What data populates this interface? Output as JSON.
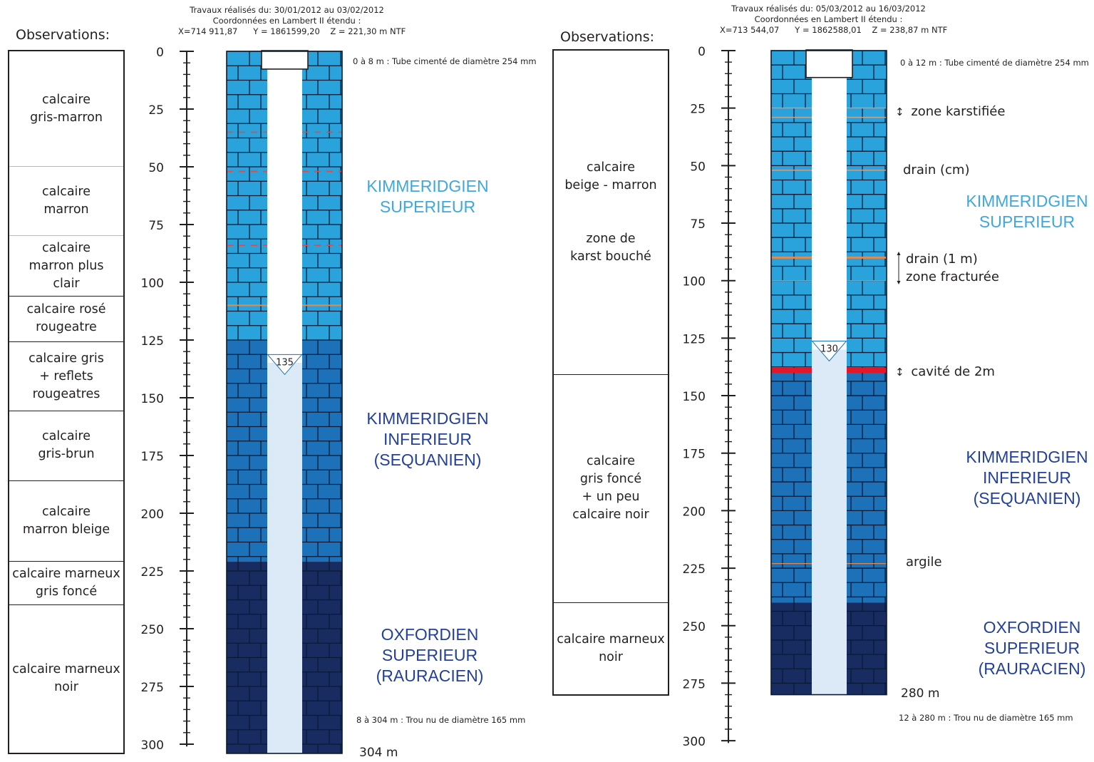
{
  "borehole1": {
    "header": [
      "Travaux réalisés du: 30/01/2012 au 03/02/2012",
      "Coordonnées en Lambert II étendu :",
      "X=714 911,87      Y = 1861599,20    Z = 221,30 m NTF"
    ],
    "observations_title": "Observations:",
    "observations": [
      {
        "text": "calcaire\ngris-marron",
        "from": 0,
        "to": 50
      },
      {
        "text": "calcaire\nmarron",
        "from": 50,
        "to": 80
      },
      {
        "text": "calcaire\nmarron plus\nclair",
        "from": 80,
        "to": 106
      },
      {
        "text": "calcaire rosé\nrougeatre",
        "from": 106,
        "to": 126
      },
      {
        "text": "calcaire gris\n+ reflets\nrougeatres",
        "from": 126,
        "to": 156
      },
      {
        "text": "calcaire\ngris-brun",
        "from": 156,
        "to": 186
      },
      {
        "text": "calcaire\nmarron bleige",
        "from": 186,
        "to": 221
      },
      {
        "text": "calcaire marneux\ngris foncé",
        "from": 221,
        "to": 240
      },
      {
        "text": "calcaire marneux\nnoir",
        "from": 240,
        "to": 304
      }
    ],
    "depth_ticks": [
      0,
      25,
      50,
      75,
      100,
      125,
      150,
      175,
      200,
      225,
      250,
      275,
      300
    ],
    "note_top": "0 à 8 m : Tube cimenté de diamètre 254 mm",
    "note_bottom": "8 à 304 m : Trou nu de diamètre 165 mm",
    "end_label": "304 m",
    "water_level": "135",
    "units": [
      {
        "text": "KIMMERIDGIEN\nSUPERIEUR",
        "color": "#3ea8de"
      },
      {
        "text": "KIMMERIDGIEN\nINFERIEUR\n(SEQUANIEN)",
        "color": "#23409a"
      },
      {
        "text": "OXFORDIEN\nSUPERIEUR\n(RAURACIEN)",
        "color": "#23409a"
      }
    ]
  },
  "borehole2": {
    "header": [
      "Travaux réalisés du: 05/03/2012 au 16/03/2012",
      "Coordonnées en Lambert II étendu :",
      "X=713 544,07      Y = 1862588,01    Z = 238,87 m NTF"
    ],
    "observations_title": "Observations:",
    "observations": [
      {
        "text": "calcaire\nbeige - marron\n\n\nzone de\nkarst bouché",
        "from": 0,
        "to": 141
      },
      {
        "text": "calcaire\ngris foncé\n+ un peu\ncalcaire noir",
        "from": 141,
        "to": 240
      },
      {
        "text": "calcaire marneux\nnoir",
        "from": 240,
        "to": 280
      }
    ],
    "depth_ticks": [
      0,
      25,
      50,
      75,
      100,
      125,
      150,
      175,
      200,
      225,
      250,
      275,
      300
    ],
    "note_top": "0 à 12 m : Tube cimenté de diamètre 254 mm",
    "note_bottom": "12 à 280 m : Trou nu de diamètre 165 mm",
    "end_label": "280 m",
    "water_level": "130",
    "annotations": {
      "karst": "zone karstifiée",
      "drain_cm": "drain (cm)",
      "drain_1m": "drain (1 m)",
      "fracture": "zone fracturée",
      "cavity": "cavité de 2m",
      "clay": "argile"
    },
    "units": [
      {
        "text": "KIMMERIDGIEN\nSUPERIEUR",
        "color": "#3ea8de"
      },
      {
        "text": "KIMMERIDGIEN\nINFERIEUR\n(SEQUANIEN)",
        "color": "#23409a"
      },
      {
        "text": "OXFORDIEN\nSUPERIEUR\n(RAURACIEN)",
        "color": "#23409a"
      }
    ]
  },
  "colors": {
    "kimmeridgien_superieur": "#2aa3dc",
    "kimmeridgien_inferieur": "#1c71b8",
    "oxfordien_superieur": "#182c61",
    "water": "#dbeaf6",
    "fracture_line": "#e24a4a",
    "drain_line": "#e08a50",
    "cavity": "#e4162a"
  }
}
